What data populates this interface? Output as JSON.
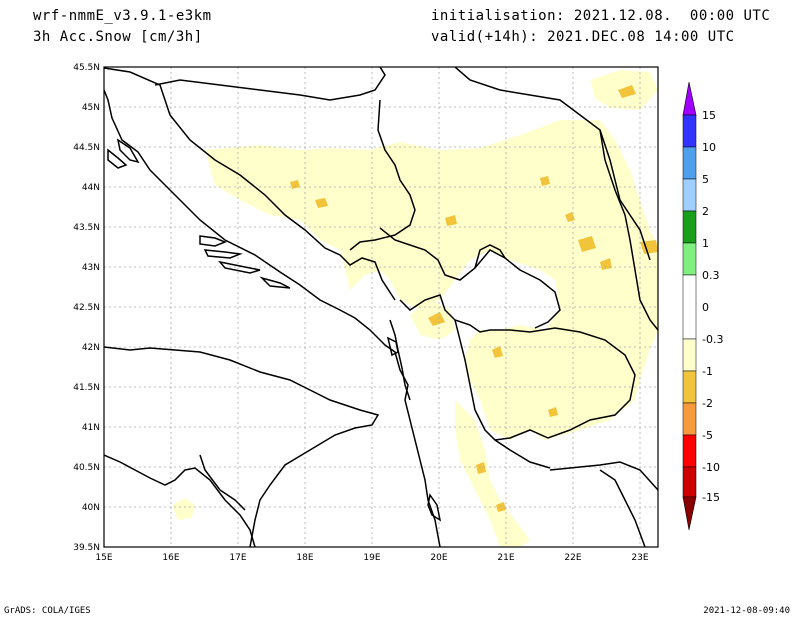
{
  "header": {
    "model": "wrf-nmmE_v3.9.1-e3km",
    "field": "3h Acc.Snow [cm/3h]",
    "init": "initialisation: 2021.12.08.  00:00 UTC",
    "valid": "valid(+14h): 2021.DEC.08 14:00 UTC"
  },
  "footer": {
    "credit": "GrADS: COLA/IGES",
    "timestamp": "2021-12-08-09:40"
  },
  "map": {
    "lon_ticks": [
      "15E",
      "16E",
      "17E",
      "18E",
      "19E",
      "20E",
      "21E",
      "22E",
      "23E"
    ],
    "lat_ticks": [
      "45.5N",
      "45N",
      "44.5N",
      "44N",
      "43.5N",
      "43N",
      "42.5N",
      "42N",
      "41.5N",
      "41N",
      "40.5N",
      "40N",
      "39.5N"
    ],
    "lon_range": [
      15,
      23.3
    ],
    "lat_range": [
      39.5,
      45.5
    ]
  },
  "colorbar": {
    "levels": [
      "15",
      "10",
      "5",
      "2",
      "1",
      "0.3",
      "0",
      "-0.3",
      "-1",
      "-2",
      "-5",
      "-10",
      "-15"
    ],
    "colors": [
      "#a000ff",
      "#3333ff",
      "#4f9fef",
      "#9fcfff",
      "#1a9f1a",
      "#7fef7f",
      "#ffffff",
      "#ffffcc",
      "#f2c43c",
      "#f79a3e",
      "#ff0000",
      "#cc0000",
      "#8b0000"
    ]
  },
  "snow": {
    "light_color": "#ffffcc",
    "medium_color": "#f2c43c"
  }
}
